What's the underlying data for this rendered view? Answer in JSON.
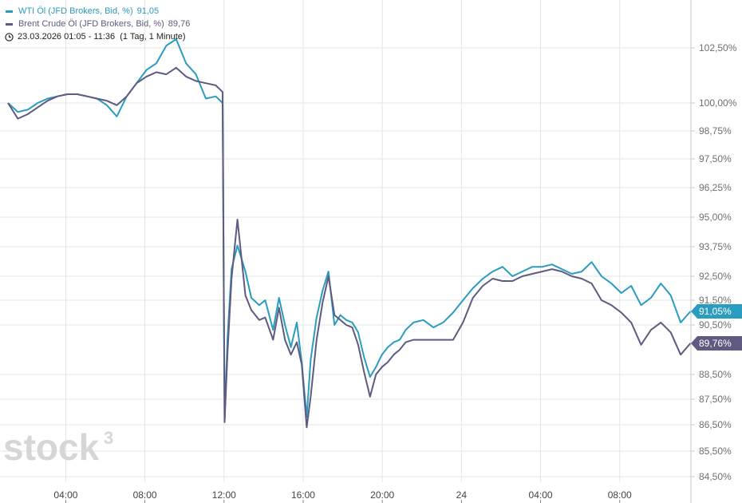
{
  "legend": {
    "wti_label": "WTI Öl (JFD Brokers, Bid, %)",
    "wti_value": "91,05",
    "brent_label": "Brent Crude Öl (JFD Brokers, Bid, %)",
    "brent_value": "89,76",
    "time_range": "23.03.2026 01:05 - 11:36  (1 Tag, 1 Minute)"
  },
  "logo": {
    "text": "stock",
    "sup": "3"
  },
  "colors": {
    "wti": "#2a9cc0",
    "brent": "#5e5a80",
    "grid": "#e6e6e6",
    "axis": "#c8c8c8"
  },
  "chart_data": {
    "type": "line",
    "title": "",
    "xlabel": "",
    "ylabel": "",
    "ylim": [
      84.0,
      104.5
    ],
    "x_unit": "hours since 23.03.2026 01:05",
    "xlim": [
      0,
      34.52
    ],
    "x_ticks": [
      {
        "label": "04:00",
        "x": 2.92
      },
      {
        "label": "08:00",
        "x": 6.92
      },
      {
        "label": "12:00",
        "x": 10.92
      },
      {
        "label": "16:00",
        "x": 14.92
      },
      {
        "label": "20:00",
        "x": 18.92
      },
      {
        "label": "24",
        "x": 22.92
      },
      {
        "label": "04:00",
        "x": 26.92
      },
      {
        "label": "08:00",
        "x": 30.92
      }
    ],
    "y_ticks": [
      {
        "label": "102,50%",
        "y": 102.5
      },
      {
        "label": "100,00%",
        "y": 100.0
      },
      {
        "label": "98,75%",
        "y": 98.75
      },
      {
        "label": "97,50%",
        "y": 97.5
      },
      {
        "label": "96,25%",
        "y": 96.25
      },
      {
        "label": "95,00%",
        "y": 95.0
      },
      {
        "label": "93,75%",
        "y": 93.75
      },
      {
        "label": "92,50%",
        "y": 92.5
      },
      {
        "label": "91,50%",
        "y": 91.5
      },
      {
        "label": "90,50%",
        "y": 90.5
      },
      {
        "label": "88,50%",
        "y": 88.5
      },
      {
        "label": "87,50%",
        "y": 87.5
      },
      {
        "label": "86,50%",
        "y": 86.5
      },
      {
        "label": "85,50%",
        "y": 85.5
      },
      {
        "label": "84,50%",
        "y": 84.5
      }
    ],
    "y_tags": [
      {
        "label": "91,05%",
        "y": 91.05,
        "series": "wti"
      },
      {
        "label": "89,76%",
        "y": 89.76,
        "series": "brent"
      }
    ],
    "series": [
      {
        "name": "WTI Öl (JFD Brokers, Bid, %)",
        "key": "wti",
        "x": [
          0.0,
          0.5,
          1.0,
          1.5,
          2.0,
          2.5,
          3.0,
          3.5,
          4.0,
          4.5,
          5.0,
          5.5,
          6.0,
          6.5,
          7.0,
          7.5,
          8.0,
          8.5,
          9.0,
          9.5,
          10.0,
          10.5,
          10.85,
          10.95,
          11.1,
          11.3,
          11.6,
          12.0,
          12.3,
          12.7,
          13.0,
          13.4,
          13.7,
          14.0,
          14.3,
          14.6,
          14.85,
          15.1,
          15.3,
          15.6,
          15.9,
          16.2,
          16.5,
          16.8,
          17.1,
          17.4,
          17.7,
          18.0,
          18.3,
          18.6,
          18.9,
          19.2,
          19.5,
          19.8,
          20.1,
          20.5,
          21.0,
          21.5,
          22.0,
          22.5,
          23.0,
          23.5,
          24.0,
          24.5,
          25.0,
          25.5,
          26.0,
          26.5,
          27.0,
          27.5,
          28.0,
          28.5,
          29.0,
          29.5,
          30.0,
          30.5,
          31.0,
          31.5,
          32.0,
          32.5,
          33.0,
          33.5,
          34.0,
          34.5
        ],
        "values": [
          100.0,
          99.6,
          99.7,
          100.0,
          100.2,
          100.3,
          100.4,
          100.4,
          100.3,
          100.2,
          99.9,
          99.4,
          100.3,
          100.9,
          101.5,
          101.8,
          102.6,
          102.9,
          101.8,
          101.3,
          100.2,
          100.3,
          100.0,
          86.7,
          90.0,
          92.8,
          93.8,
          92.7,
          91.6,
          91.3,
          91.5,
          90.3,
          91.6,
          90.5,
          89.6,
          90.6,
          89.0,
          86.8,
          89.1,
          90.8,
          91.9,
          92.7,
          90.5,
          90.9,
          90.7,
          90.6,
          90.2,
          89.2,
          88.4,
          88.8,
          89.3,
          89.6,
          89.8,
          89.9,
          90.3,
          90.6,
          90.7,
          90.4,
          90.6,
          91.0,
          91.5,
          92.0,
          92.4,
          92.7,
          92.9,
          92.5,
          92.7,
          92.9,
          92.9,
          93.0,
          92.8,
          92.6,
          92.7,
          93.1,
          92.5,
          92.2,
          91.8,
          92.1,
          91.3,
          91.6,
          92.2,
          91.7,
          90.6,
          91.05
        ]
      },
      {
        "name": "Brent Crude Öl (JFD Brokers, Bid, %)",
        "key": "brent",
        "x": [
          0.0,
          0.5,
          1.0,
          1.5,
          2.0,
          2.5,
          3.0,
          3.5,
          4.0,
          4.5,
          5.0,
          5.5,
          6.0,
          6.5,
          7.0,
          7.5,
          8.0,
          8.5,
          9.0,
          9.5,
          10.0,
          10.5,
          10.85,
          10.95,
          11.1,
          11.3,
          11.6,
          12.0,
          12.3,
          12.7,
          13.0,
          13.4,
          13.7,
          14.0,
          14.3,
          14.6,
          14.85,
          15.1,
          15.3,
          15.6,
          15.9,
          16.2,
          16.5,
          16.8,
          17.1,
          17.4,
          17.7,
          18.0,
          18.3,
          18.6,
          18.9,
          19.2,
          19.5,
          19.8,
          20.1,
          20.5,
          21.0,
          21.5,
          22.0,
          22.5,
          23.0,
          23.5,
          24.0,
          24.5,
          25.0,
          25.5,
          26.0,
          26.5,
          27.0,
          27.5,
          28.0,
          28.5,
          29.0,
          29.5,
          30.0,
          30.5,
          31.0,
          31.5,
          32.0,
          32.5,
          33.0,
          33.5,
          34.0,
          34.5
        ],
        "values": [
          100.0,
          99.3,
          99.5,
          99.8,
          100.1,
          100.3,
          100.4,
          100.4,
          100.3,
          100.2,
          100.1,
          99.9,
          100.3,
          100.9,
          101.2,
          101.4,
          101.3,
          101.6,
          101.2,
          101.0,
          100.9,
          100.8,
          100.5,
          86.6,
          89.4,
          92.4,
          94.9,
          91.7,
          91.1,
          90.7,
          90.8,
          89.9,
          91.2,
          89.9,
          89.3,
          89.8,
          88.9,
          86.4,
          87.6,
          89.9,
          91.4,
          92.5,
          90.9,
          90.7,
          90.5,
          90.4,
          89.7,
          88.6,
          87.6,
          88.5,
          88.8,
          89.0,
          89.3,
          89.5,
          89.8,
          89.9,
          89.9,
          89.9,
          89.9,
          89.9,
          90.6,
          91.6,
          92.1,
          92.4,
          92.3,
          92.3,
          92.5,
          92.6,
          92.7,
          92.8,
          92.7,
          92.5,
          92.4,
          92.2,
          91.5,
          91.3,
          91.0,
          90.6,
          89.7,
          90.3,
          90.6,
          90.2,
          89.3,
          89.76
        ]
      }
    ]
  }
}
